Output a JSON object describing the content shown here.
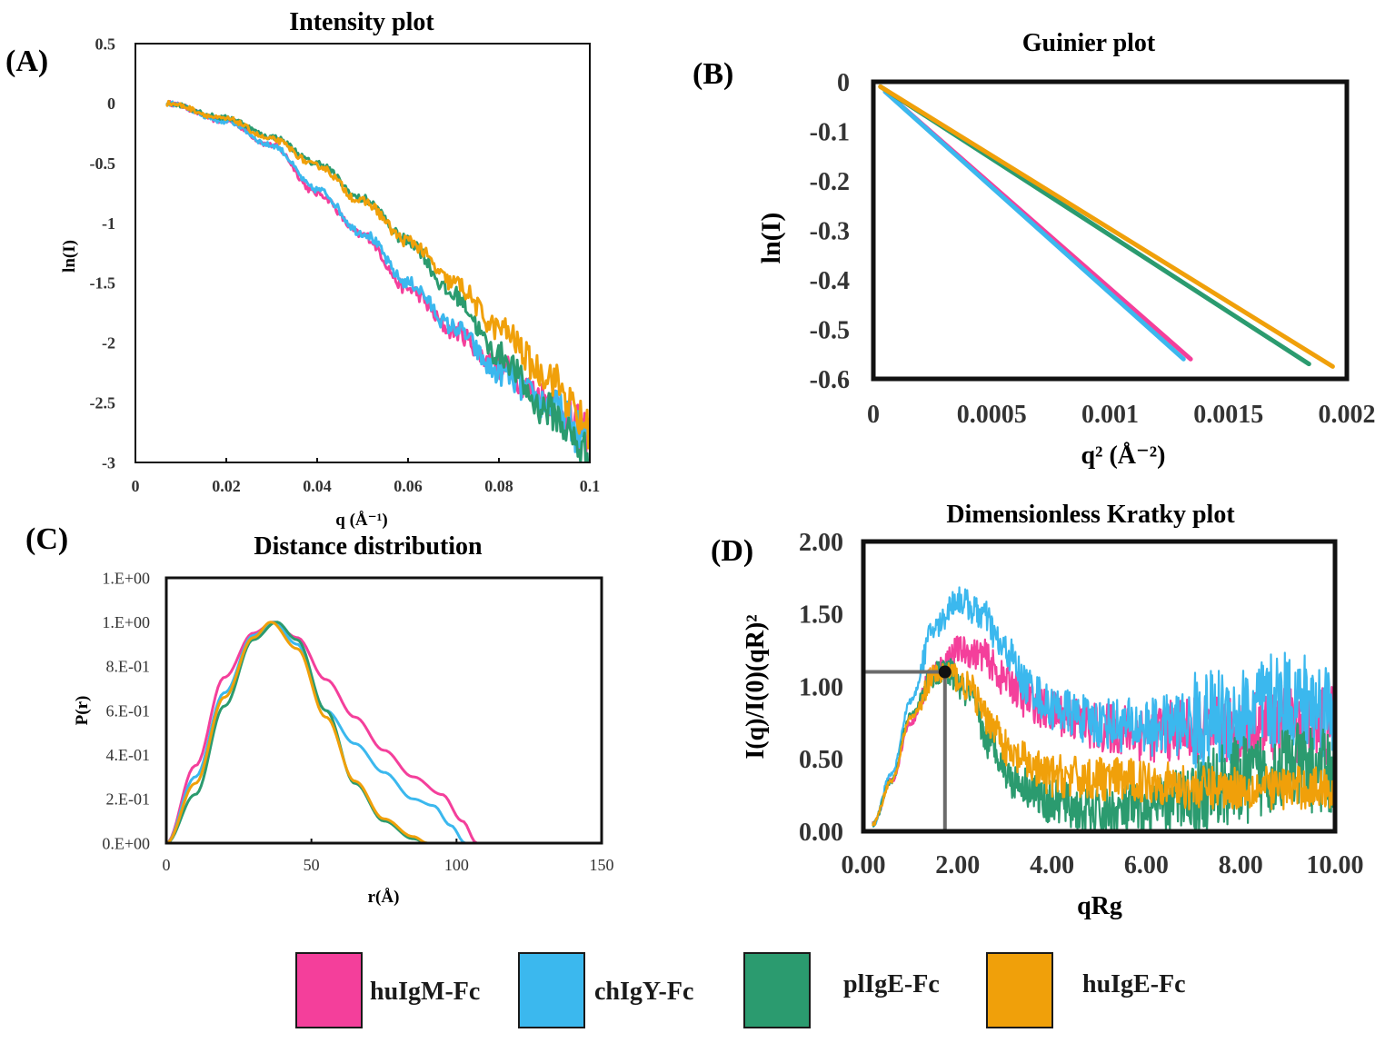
{
  "colors": {
    "huIgM-Fc": "#f43f9b",
    "chIgY-Fc": "#3bb8ee",
    "plIgE-Fc": "#2b9b6f",
    "huIgE-Fc": "#f0a00a"
  },
  "legend": [
    {
      "label": "huIgM-Fc",
      "color": "#f43f9b"
    },
    {
      "label": "chIgY-Fc",
      "color": "#3bb8ee"
    },
    {
      "label": "plIgE-Fc",
      "color": "#2b9b6f"
    },
    {
      "label": "huIgE-Fc",
      "color": "#f0a00a"
    }
  ],
  "chart_data": [
    {
      "panel": "(A)",
      "type": "line",
      "title": "Intensity plot",
      "xlabel": "q (Å⁻¹)",
      "ylabel": "ln(I)",
      "xlim": [
        0,
        0.1
      ],
      "ylim": [
        -3,
        0.5
      ],
      "xticks": [
        0,
        0.02,
        0.04,
        0.06,
        0.08,
        0.1
      ],
      "xtick_labels": [
        "0",
        "0.02",
        "0.04",
        "0.06",
        "0.08",
        "0.1"
      ],
      "yticks": [
        0.5,
        0,
        -0.5,
        -1,
        -1.5,
        -2,
        -2.5,
        -3
      ],
      "ytick_labels": [
        "0.5",
        "0",
        "-0.5",
        "-1",
        "-1.5",
        "-2",
        "-2.5",
        "-3"
      ],
      "noisy": true,
      "series": [
        {
          "name": "huIgM-Fc",
          "x": [
            0.007,
            0.02,
            0.03,
            0.04,
            0.05,
            0.06,
            0.07,
            0.08,
            0.09,
            0.1
          ],
          "values": [
            0,
            -0.15,
            -0.35,
            -0.75,
            -1.1,
            -1.55,
            -1.9,
            -2.2,
            -2.45,
            -2.75
          ]
        },
        {
          "name": "chIgY-Fc",
          "x": [
            0.007,
            0.02,
            0.03,
            0.04,
            0.05,
            0.06,
            0.07,
            0.08,
            0.09,
            0.1
          ],
          "values": [
            0,
            -0.15,
            -0.35,
            -0.72,
            -1.08,
            -1.5,
            -1.87,
            -2.25,
            -2.5,
            -2.8
          ]
        },
        {
          "name": "plIgE-Fc",
          "x": [
            0.007,
            0.02,
            0.03,
            0.04,
            0.05,
            0.06,
            0.07,
            0.08,
            0.09,
            0.1
          ],
          "values": [
            0,
            -0.12,
            -0.28,
            -0.5,
            -0.8,
            -1.15,
            -1.6,
            -2.1,
            -2.55,
            -2.92
          ]
        },
        {
          "name": "huIgE-Fc",
          "x": [
            0.007,
            0.02,
            0.03,
            0.04,
            0.05,
            0.06,
            0.07,
            0.08,
            0.09,
            0.1
          ],
          "values": [
            0,
            -0.13,
            -0.3,
            -0.52,
            -0.82,
            -1.15,
            -1.5,
            -1.88,
            -2.25,
            -2.7
          ]
        }
      ]
    },
    {
      "panel": "(B)",
      "type": "line",
      "title": "Guinier plot",
      "xlabel": "q² (Å⁻²)",
      "ylabel": "ln(I)",
      "xlim": [
        0,
        0.002
      ],
      "ylim": [
        -0.6,
        0
      ],
      "xticks": [
        0,
        0.0005,
        0.001,
        0.0015,
        0.002
      ],
      "xtick_labels": [
        "0",
        "0.0005",
        "0.001",
        "0.0015",
        "0.002"
      ],
      "yticks": [
        0,
        -0.1,
        -0.2,
        -0.3,
        -0.4,
        -0.5,
        -0.6
      ],
      "ytick_labels": [
        "0",
        "-0.1",
        "-0.2",
        "-0.3",
        "-0.4",
        "-0.5",
        "-0.6"
      ],
      "series": [
        {
          "name": "huIgM-Fc",
          "x": [
            5e-05,
            0.00134
          ],
          "values": [
            -0.02,
            -0.56
          ]
        },
        {
          "name": "chIgY-Fc",
          "x": [
            5e-05,
            0.00131
          ],
          "values": [
            -0.02,
            -0.56
          ]
        },
        {
          "name": "plIgE-Fc",
          "x": [
            3e-05,
            0.00184
          ],
          "values": [
            -0.01,
            -0.57
          ]
        },
        {
          "name": "huIgE-Fc",
          "x": [
            3e-05,
            0.00194
          ],
          "values": [
            -0.01,
            -0.575
          ]
        }
      ]
    },
    {
      "panel": "(C)",
      "type": "line",
      "title": "Distance distribution",
      "xlabel": "r(Å)",
      "ylabel": "P(r)",
      "xlim": [
        0,
        150
      ],
      "ylim": [
        0,
        1.2
      ],
      "xticks": [
        0,
        50,
        100,
        150
      ],
      "xtick_labels": [
        "0",
        "50",
        "100",
        "150"
      ],
      "yticks": [
        1.2,
        1.0,
        0.8,
        0.6,
        0.4,
        0.2,
        0
      ],
      "ytick_labels": [
        "1.E+00",
        "1.E+00",
        "8.E-01",
        "6.E-01",
        "4.E-01",
        "2.E-01",
        "0.E+00"
      ],
      "series": [
        {
          "name": "huIgM-Fc",
          "x": [
            0,
            10,
            20,
            30,
            37,
            45,
            55,
            65,
            75,
            85,
            95,
            102,
            107
          ],
          "values": [
            0,
            0.35,
            0.75,
            0.95,
            1.0,
            0.93,
            0.74,
            0.57,
            0.42,
            0.3,
            0.22,
            0.1,
            0
          ]
        },
        {
          "name": "chIgY-Fc",
          "x": [
            0,
            10,
            20,
            30,
            37,
            45,
            55,
            65,
            75,
            85,
            92,
            98,
            103
          ],
          "values": [
            0,
            0.3,
            0.68,
            0.94,
            1.0,
            0.9,
            0.6,
            0.45,
            0.32,
            0.2,
            0.17,
            0.08,
            0
          ]
        },
        {
          "name": "plIgE-Fc",
          "x": [
            0,
            10,
            20,
            30,
            38,
            45,
            55,
            65,
            75,
            85,
            90
          ],
          "values": [
            0,
            0.22,
            0.62,
            0.92,
            1.0,
            0.92,
            0.6,
            0.27,
            0.1,
            0.02,
            0
          ]
        },
        {
          "name": "huIgE-Fc",
          "x": [
            0,
            10,
            20,
            30,
            36,
            45,
            55,
            65,
            75,
            85,
            90
          ],
          "values": [
            0,
            0.27,
            0.66,
            0.93,
            1.0,
            0.88,
            0.57,
            0.28,
            0.11,
            0.03,
            0
          ]
        }
      ]
    },
    {
      "panel": "(D)",
      "type": "line",
      "title": "Dimensionless Kratky plot",
      "xlabel": "qRg",
      "ylabel": "I(q)/I(0)(qR)²",
      "xlim": [
        0,
        10
      ],
      "ylim": [
        0,
        2
      ],
      "xticks": [
        0,
        2,
        4,
        6,
        8,
        10
      ],
      "xtick_labels": [
        "0.00",
        "2.00",
        "4.00",
        "6.00",
        "8.00",
        "10.00"
      ],
      "yticks": [
        2,
        1.5,
        1,
        0.5,
        0
      ],
      "ytick_labels": [
        "2.00",
        "1.50",
        "1.00",
        "0.50",
        "0.00"
      ],
      "noisy": true,
      "marker": {
        "x": 1.73,
        "y": 1.1
      },
      "series": [
        {
          "name": "huIgM-Fc",
          "x": [
            0.2,
            0.6,
            1.0,
            1.5,
            2.0,
            2.5,
            3.0,
            3.5,
            4.0,
            5.0,
            6.0,
            7.0,
            8.0,
            9.0,
            10.0
          ],
          "values": [
            0.05,
            0.35,
            0.75,
            1.1,
            1.25,
            1.22,
            1.05,
            0.9,
            0.82,
            0.72,
            0.68,
            0.7,
            0.7,
            0.75,
            0.7
          ]
        },
        {
          "name": "chIgY-Fc",
          "x": [
            0.2,
            0.6,
            1.0,
            1.5,
            2.0,
            2.5,
            3.0,
            3.5,
            4.0,
            5.0,
            6.0,
            7.0,
            8.0,
            9.0,
            10.0
          ],
          "values": [
            0.05,
            0.4,
            0.9,
            1.4,
            1.6,
            1.5,
            1.25,
            1.0,
            0.85,
            0.75,
            0.72,
            0.75,
            0.8,
            0.9,
            0.85
          ]
        },
        {
          "name": "plIgE-Fc",
          "x": [
            0.2,
            0.6,
            1.0,
            1.5,
            1.8,
            2.2,
            2.7,
            3.2,
            4.0,
            5.0,
            6.0,
            7.0,
            8.0,
            9.0,
            10.0
          ],
          "values": [
            0.05,
            0.35,
            0.8,
            1.08,
            1.1,
            0.95,
            0.6,
            0.35,
            0.2,
            0.12,
            0.15,
            0.25,
            0.35,
            0.45,
            0.4
          ]
        },
        {
          "name": "huIgE-Fc",
          "x": [
            0.2,
            0.6,
            1.0,
            1.5,
            1.8,
            2.2,
            2.7,
            3.2,
            4.0,
            5.0,
            6.0,
            7.0,
            8.0,
            9.0,
            10.0
          ],
          "values": [
            0.05,
            0.35,
            0.78,
            1.07,
            1.1,
            1.0,
            0.75,
            0.5,
            0.38,
            0.36,
            0.35,
            0.3,
            0.3,
            0.3,
            0.3
          ]
        }
      ]
    }
  ]
}
